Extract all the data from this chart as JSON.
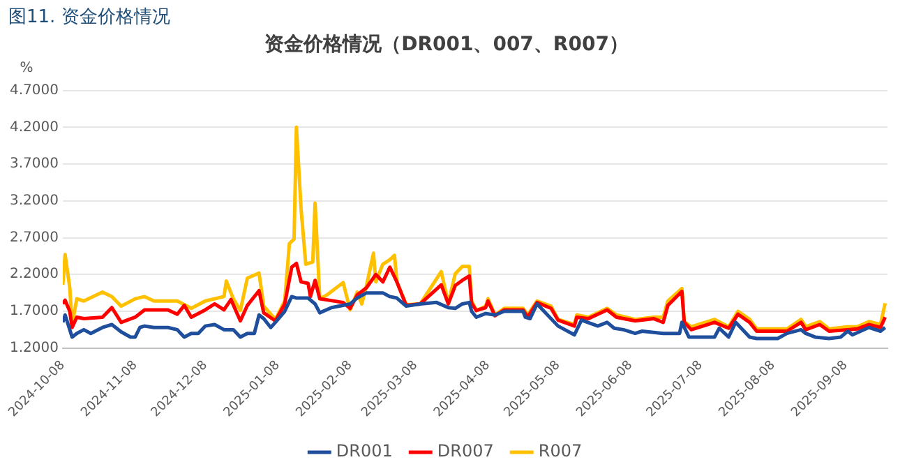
{
  "chart_data": {
    "type": "line",
    "title": "资金价格情况（DR001、007、R007）",
    "ylabel": "%",
    "annotations": [
      "图11.  资金价格情况"
    ],
    "xlim": [
      "2024-10-08",
      "2025-09-26"
    ],
    "xticks": [
      "2024-10-08",
      "2024-11-08",
      "2024-12-08",
      "2025-01-08",
      "2025-02-08",
      "2025-03-08",
      "2025-04-08",
      "2025-05-08",
      "2025-06-08",
      "2025-07-08",
      "2025-08-08",
      "2025-09-08"
    ],
    "ylim": [
      1.2,
      4.7
    ],
    "yticks": [
      {
        "value": 1.2,
        "label": "1.2000"
      },
      {
        "value": 1.7,
        "label": "1.7000"
      },
      {
        "value": 2.2,
        "label": "2.2000"
      },
      {
        "value": 2.7,
        "label": "2.7000"
      },
      {
        "value": 3.2,
        "label": "3.2000"
      },
      {
        "value": 3.7,
        "label": "3.7000"
      },
      {
        "value": 4.2,
        "label": "4.2000"
      },
      {
        "value": 4.7,
        "label": "4.7000"
      }
    ],
    "grid": "y",
    "legend": "bottom",
    "marker": "none",
    "line_style": "solid",
    "series": [
      {
        "name": "DR001",
        "color": "#1f4e9c",
        "x": [
          "2024-10-08",
          "2024-10-09",
          "2024-10-11",
          "2024-10-12",
          "2024-10-14",
          "2024-10-17",
          "2024-10-20",
          "2024-10-25",
          "2024-10-29",
          "2024-11-02",
          "2024-11-06",
          "2024-11-08",
          "2024-11-10",
          "2024-11-12",
          "2024-11-16",
          "2024-11-22",
          "2024-11-26",
          "2024-11-29",
          "2024-12-02",
          "2024-12-05",
          "2024-12-08",
          "2024-12-12",
          "2024-12-16",
          "2024-12-20",
          "2024-12-23",
          "2024-12-26",
          "2024-12-29",
          "2024-12-31",
          "2025-01-02",
          "2025-01-05",
          "2025-01-07",
          "2025-01-11",
          "2025-01-14",
          "2025-01-16",
          "2025-01-21",
          "2025-01-24",
          "2025-01-26",
          "2025-01-31",
          "2025-02-08",
          "2025-02-11",
          "2025-02-15",
          "2025-02-19",
          "2025-02-22",
          "2025-02-25",
          "2025-02-28",
          "2025-03-04",
          "2025-03-10",
          "2025-03-17",
          "2025-03-22",
          "2025-03-25",
          "2025-03-28",
          "2025-03-31",
          "2025-04-01",
          "2025-04-03",
          "2025-04-07",
          "2025-04-11",
          "2025-04-15",
          "2025-04-23",
          "2025-04-24",
          "2025-04-26",
          "2025-04-29",
          "2025-05-08",
          "2025-05-15",
          "2025-05-18",
          "2025-05-25",
          "2025-05-29",
          "2025-06-01",
          "2025-06-05",
          "2025-06-10",
          "2025-06-13",
          "2025-06-22",
          "2025-06-29",
          "2025-06-30",
          "2025-07-03",
          "2025-07-14",
          "2025-07-16",
          "2025-07-20",
          "2025-07-23",
          "2025-07-29",
          "2025-08-01",
          "2025-08-10",
          "2025-08-14",
          "2025-08-20",
          "2025-08-22",
          "2025-08-26",
          "2025-09-01",
          "2025-09-06",
          "2025-09-09",
          "2025-09-11",
          "2025-09-18",
          "2025-09-23",
          "2025-09-25"
        ],
        "values": [
          1.55,
          1.65,
          1.45,
          1.35,
          1.4,
          1.45,
          1.4,
          1.48,
          1.52,
          1.42,
          1.35,
          1.35,
          1.48,
          1.5,
          1.48,
          1.48,
          1.45,
          1.35,
          1.4,
          1.4,
          1.5,
          1.52,
          1.45,
          1.45,
          1.35,
          1.4,
          1.4,
          1.65,
          1.6,
          1.48,
          1.55,
          1.7,
          1.9,
          1.88,
          1.88,
          1.8,
          1.68,
          1.75,
          1.8,
          1.88,
          1.95,
          1.95,
          1.95,
          1.9,
          1.88,
          1.77,
          1.8,
          1.82,
          1.75,
          1.74,
          1.8,
          1.82,
          1.7,
          1.62,
          1.67,
          1.65,
          1.7,
          1.7,
          1.62,
          1.6,
          1.8,
          1.5,
          1.38,
          1.58,
          1.5,
          1.55,
          1.47,
          1.45,
          1.4,
          1.43,
          1.4,
          1.4,
          1.55,
          1.35,
          1.35,
          1.47,
          1.35,
          1.55,
          1.35,
          1.33,
          1.33,
          1.4,
          1.45,
          1.4,
          1.35,
          1.33,
          1.35,
          1.43,
          1.38,
          1.48,
          1.43,
          1.48
        ]
      },
      {
        "name": "DR007",
        "color": "#ff0000",
        "x": [
          "2024-10-08",
          "2024-10-09",
          "2024-10-11",
          "2024-10-12",
          "2024-10-14",
          "2024-10-17",
          "2024-10-25",
          "2024-10-29",
          "2024-11-02",
          "2024-11-08",
          "2024-11-12",
          "2024-11-16",
          "2024-11-22",
          "2024-11-26",
          "2024-11-29",
          "2024-12-02",
          "2024-12-08",
          "2024-12-12",
          "2024-12-16",
          "2024-12-19",
          "2024-12-23",
          "2024-12-26",
          "2024-12-31",
          "2025-01-02",
          "2025-01-07",
          "2025-01-11",
          "2025-01-14",
          "2025-01-16",
          "2025-01-18",
          "2025-01-21",
          "2025-01-22",
          "2025-01-24",
          "2025-01-26",
          "2025-02-05",
          "2025-02-08",
          "2025-02-11",
          "2025-02-15",
          "2025-02-19",
          "2025-02-22",
          "2025-02-25",
          "2025-02-28",
          "2025-03-04",
          "2025-03-10",
          "2025-03-19",
          "2025-03-22",
          "2025-03-25",
          "2025-03-28",
          "2025-03-31",
          "2025-04-01",
          "2025-04-03",
          "2025-04-07",
          "2025-04-08",
          "2025-04-11",
          "2025-04-15",
          "2025-04-23",
          "2025-04-25",
          "2025-04-29",
          "2025-05-05",
          "2025-05-08",
          "2025-05-15",
          "2025-05-16",
          "2025-05-21",
          "2025-05-29",
          "2025-06-02",
          "2025-06-10",
          "2025-06-18",
          "2025-06-22",
          "2025-06-24",
          "2025-06-30",
          "2025-07-01",
          "2025-07-04",
          "2025-07-14",
          "2025-07-20",
          "2025-07-24",
          "2025-07-29",
          "2025-08-01",
          "2025-08-14",
          "2025-08-20",
          "2025-08-22",
          "2025-08-28",
          "2025-09-01",
          "2025-09-09",
          "2025-09-13",
          "2025-09-18",
          "2025-09-23",
          "2025-09-25"
        ],
        "values": [
          1.8,
          1.85,
          1.7,
          1.48,
          1.62,
          1.6,
          1.62,
          1.75,
          1.55,
          1.62,
          1.72,
          1.72,
          1.72,
          1.66,
          1.78,
          1.62,
          1.72,
          1.8,
          1.72,
          1.86,
          1.57,
          1.78,
          1.98,
          1.68,
          1.57,
          1.8,
          2.3,
          2.35,
          2.1,
          2.08,
          1.9,
          2.12,
          1.87,
          1.82,
          1.74,
          1.92,
          2.02,
          2.2,
          2.1,
          2.3,
          2.1,
          1.78,
          1.8,
          2.06,
          1.8,
          2.05,
          2.12,
          2.18,
          1.81,
          1.71,
          1.75,
          1.84,
          1.64,
          1.72,
          1.72,
          1.62,
          1.82,
          1.74,
          1.58,
          1.5,
          1.62,
          1.6,
          1.72,
          1.62,
          1.57,
          1.6,
          1.55,
          1.78,
          1.97,
          1.55,
          1.45,
          1.55,
          1.47,
          1.66,
          1.55,
          1.43,
          1.43,
          1.55,
          1.45,
          1.52,
          1.43,
          1.45,
          1.46,
          1.52,
          1.48,
          1.62
        ]
      },
      {
        "name": "R007",
        "color": "#ffc000",
        "x": [
          "2024-10-08",
          "2024-10-09",
          "2024-10-11",
          "2024-10-12",
          "2024-10-14",
          "2024-10-17",
          "2024-10-25",
          "2024-10-29",
          "2024-11-02",
          "2024-11-08",
          "2024-11-12",
          "2024-11-16",
          "2024-11-26",
          "2024-12-02",
          "2024-12-08",
          "2024-12-16",
          "2024-12-17",
          "2024-12-20",
          "2024-12-23",
          "2024-12-26",
          "2024-12-31",
          "2025-01-02",
          "2025-01-07",
          "2025-01-11",
          "2025-01-13",
          "2025-01-15",
          "2025-01-16",
          "2025-01-18",
          "2025-01-20",
          "2025-01-23",
          "2025-01-24",
          "2025-01-26",
          "2025-01-29",
          "2025-02-05",
          "2025-02-08",
          "2025-02-11",
          "2025-02-13",
          "2025-02-15",
          "2025-02-18",
          "2025-02-19",
          "2025-02-22",
          "2025-02-25",
          "2025-02-27",
          "2025-02-28",
          "2025-03-04",
          "2025-03-10",
          "2025-03-19",
          "2025-03-22",
          "2025-03-25",
          "2025-03-28",
          "2025-03-31",
          "2025-04-01",
          "2025-04-03",
          "2025-04-07",
          "2025-04-08",
          "2025-04-11",
          "2025-04-15",
          "2025-04-23",
          "2025-04-25",
          "2025-04-29",
          "2025-05-05",
          "2025-05-08",
          "2025-05-15",
          "2025-05-16",
          "2025-05-21",
          "2025-05-29",
          "2025-06-02",
          "2025-06-10",
          "2025-06-18",
          "2025-06-22",
          "2025-06-24",
          "2025-06-30",
          "2025-07-01",
          "2025-07-04",
          "2025-07-14",
          "2025-07-20",
          "2025-07-24",
          "2025-07-29",
          "2025-08-01",
          "2025-08-14",
          "2025-08-20",
          "2025-08-22",
          "2025-08-28",
          "2025-09-01",
          "2025-09-09",
          "2025-09-13",
          "2025-09-18",
          "2025-09-23",
          "2025-09-25"
        ],
        "values": [
          2.06,
          2.47,
          2.02,
          1.52,
          1.87,
          1.84,
          1.96,
          1.9,
          1.77,
          1.87,
          1.9,
          1.84,
          1.84,
          1.74,
          1.84,
          1.9,
          2.11,
          1.87,
          1.71,
          2.15,
          2.22,
          1.77,
          1.59,
          1.84,
          2.62,
          2.68,
          4.2,
          3.09,
          2.34,
          2.37,
          3.17,
          1.87,
          1.92,
          2.09,
          1.72,
          1.96,
          1.8,
          2.05,
          2.49,
          2.1,
          2.34,
          2.4,
          2.46,
          2.1,
          1.79,
          1.8,
          2.24,
          1.81,
          2.21,
          2.31,
          2.31,
          1.84,
          1.71,
          1.77,
          1.87,
          1.65,
          1.74,
          1.74,
          1.65,
          1.84,
          1.77,
          1.59,
          1.52,
          1.65,
          1.62,
          1.74,
          1.65,
          1.59,
          1.62,
          1.62,
          1.84,
          2.01,
          1.56,
          1.49,
          1.59,
          1.49,
          1.7,
          1.59,
          1.46,
          1.46,
          1.59,
          1.49,
          1.56,
          1.46,
          1.49,
          1.49,
          1.56,
          1.52,
          1.81
        ]
      }
    ]
  }
}
